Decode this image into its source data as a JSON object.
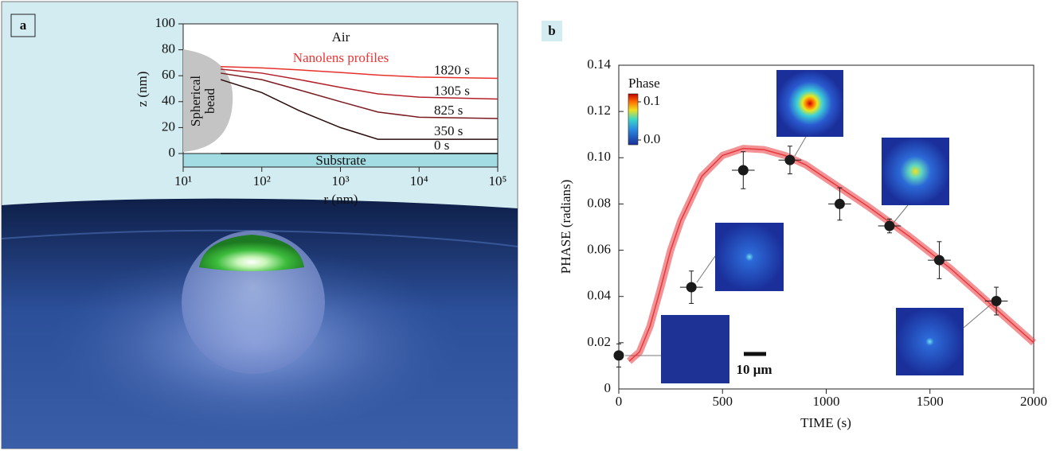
{
  "chart_data": [
    {
      "type": "line",
      "panel_label": "a",
      "xlabel": "r (nm)",
      "ylabel": "z (nm)",
      "xscale": "log",
      "xlim": [
        10,
        100000
      ],
      "xticks": [
        {
          "value": 10,
          "label": "10¹"
        },
        {
          "value": 100,
          "label": "10²"
        },
        {
          "value": 1000,
          "label": "10³"
        },
        {
          "value": 10000,
          "label": "10⁴"
        },
        {
          "value": 100000,
          "label": "10⁵"
        }
      ],
      "ylim": [
        0,
        100
      ],
      "yticks": [
        0,
        20,
        40,
        60,
        80,
        100
      ],
      "annotations": {
        "air": "Air",
        "profiles": "Nanolens profiles",
        "bead": [
          "Spherical",
          "bead"
        ],
        "substrate": "Substrate"
      },
      "series": [
        {
          "name": "1820 s",
          "color": "#e8312a",
          "x": [
            30,
            100,
            300,
            1000,
            3000,
            10000,
            100000
          ],
          "values": [
            67,
            66,
            64.5,
            62.5,
            60.5,
            59,
            58
          ]
        },
        {
          "name": "1305 s",
          "color": "#b3202a",
          "x": [
            30,
            100,
            300,
            1000,
            3000,
            10000,
            100000
          ],
          "values": [
            65,
            62,
            57,
            51,
            46,
            43.5,
            42
          ]
        },
        {
          "name": "825 s",
          "color": "#7a1a20",
          "x": [
            30,
            100,
            300,
            1000,
            3000,
            10000,
            100000
          ],
          "values": [
            62,
            57,
            49,
            40,
            32,
            28,
            27
          ]
        },
        {
          "name": "350 s",
          "color": "#2a0c0c",
          "x": [
            30,
            100,
            300,
            1000,
            3000,
            10000,
            100000
          ],
          "values": [
            57,
            47,
            33,
            20,
            11,
            11,
            11
          ]
        },
        {
          "name": "0 s",
          "color": "#000000",
          "x": [
            30,
            100000
          ],
          "values": [
            0,
            0
          ]
        }
      ]
    },
    {
      "type": "scatter",
      "panel_label": "b",
      "xlabel": "TIME (s)",
      "ylabel": "PHASE (radians)",
      "xlim": [
        0,
        2000
      ],
      "xticks": [
        0,
        500,
        1000,
        1500,
        2000
      ],
      "ylim": [
        0,
        0.14
      ],
      "yticks": [
        0,
        0.02,
        0.04,
        0.06,
        0.08,
        {
          "value": 0.1,
          "label": "0.10"
        },
        0.12,
        0.14
      ],
      "colorbar": {
        "label": "Phase",
        "clim": [
          0,
          0.1
        ],
        "ticks": [
          0.1,
          {
            "value": 0,
            "label": "0.0"
          }
        ]
      },
      "scale_bar": "10 μm",
      "series": [
        {
          "type": "line",
          "color": "#e8383d",
          "x": [
            50,
            100,
            150,
            200,
            250,
            300,
            400,
            500,
            600,
            700,
            800,
            900,
            1000,
            1200,
            1400,
            1600,
            1800,
            2000
          ],
          "values": [
            0.012,
            0.016,
            0.027,
            0.043,
            0.06,
            0.073,
            0.092,
            0.101,
            0.104,
            0.1035,
            0.101,
            0.097,
            0.091,
            0.079,
            0.066,
            0.052,
            0.036,
            0.02
          ]
        },
        {
          "type": "errorbar",
          "color": "#1a1a1a",
          "x": [
            0,
            350,
            600,
            825,
            1065,
            1305,
            1545,
            1820
          ],
          "values": [
            0.0145,
            0.044,
            0.0946,
            0.099,
            0.08,
            0.0705,
            0.0557,
            0.038
          ],
          "xerr": [
            0,
            55,
            55,
            55,
            55,
            55,
            55,
            55
          ],
          "yerr": [
            0.005,
            0.007,
            0.008,
            0.006,
            0.007,
            0.003,
            0.008,
            0.006
          ]
        }
      ]
    }
  ]
}
